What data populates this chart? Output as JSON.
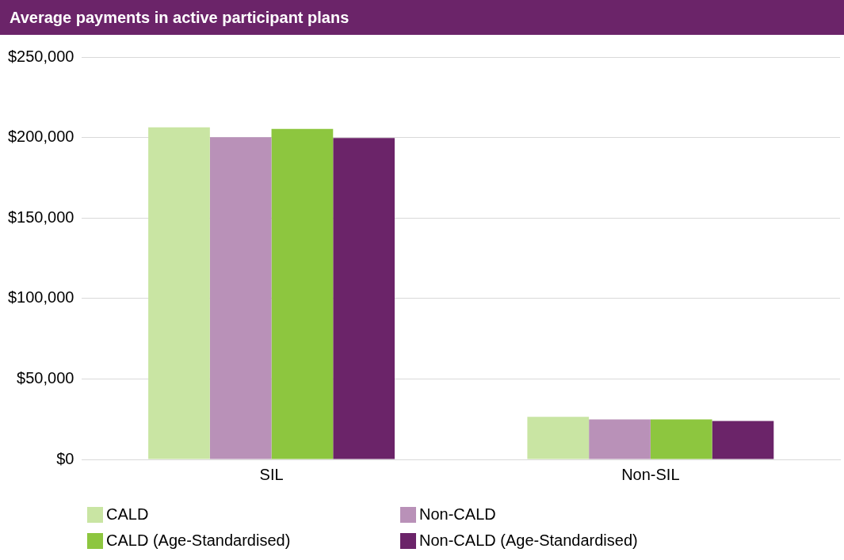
{
  "chart_data": {
    "type": "bar",
    "title": "Average payments in active participant plans",
    "categories": [
      "SIL",
      "Non-SIL"
    ],
    "series": [
      {
        "name": "CALD",
        "color": "#c9e5a3",
        "values": [
          206300,
          26400
        ]
      },
      {
        "name": "Non-CALD",
        "color": "#b991b8",
        "values": [
          200200,
          24900
        ]
      },
      {
        "name": "CALD (Age-Standardised)",
        "color": "#8dc63f",
        "values": [
          205300,
          24900
        ]
      },
      {
        "name": "Non-CALD (Age-Standardised)",
        "color": "#6b2469",
        "values": [
          199700,
          23900
        ]
      }
    ],
    "ylim": [
      0,
      250000
    ],
    "yticks": [
      {
        "value": 0,
        "label": "$0"
      },
      {
        "value": 50000,
        "label": "$50,000"
      },
      {
        "value": 100000,
        "label": "$100,000"
      },
      {
        "value": 150000,
        "label": "$150,000"
      },
      {
        "value": 200000,
        "label": "$200,000"
      },
      {
        "value": 250000,
        "label": "$250,000"
      }
    ],
    "grid": "y",
    "legend": "bottom"
  }
}
